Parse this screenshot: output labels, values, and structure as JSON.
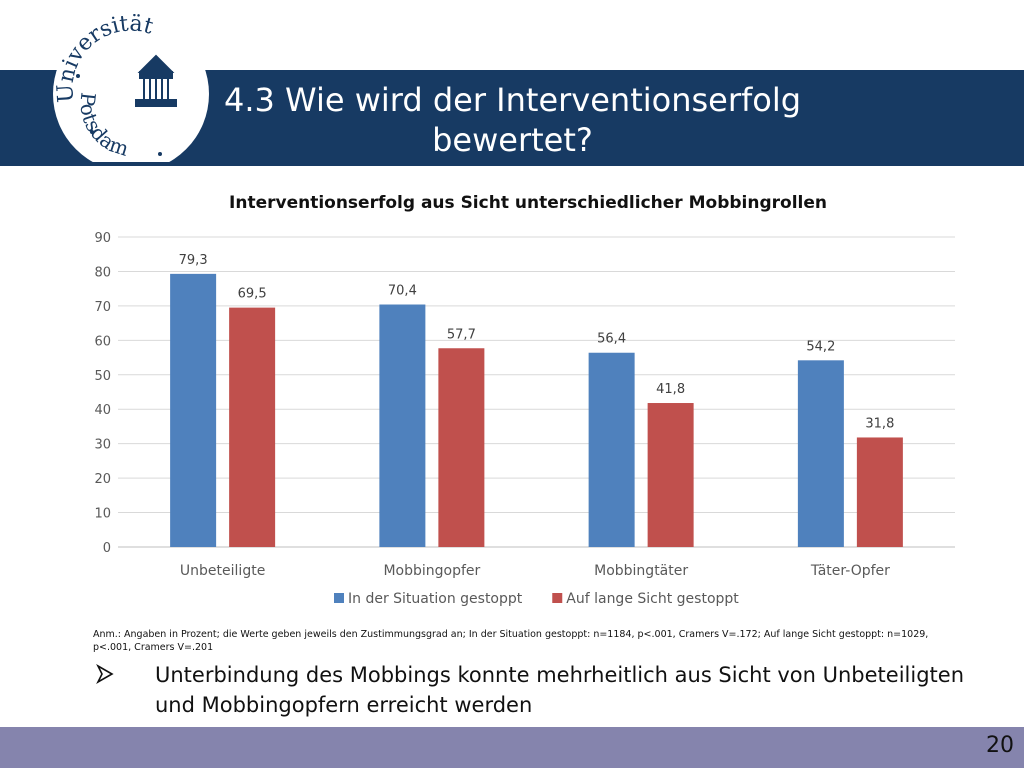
{
  "slide": {
    "title": "4.3 Wie wird der Interventionserfolg bewertet?",
    "logo": {
      "top_text": "Universität",
      "bottom_text": "Potsdam"
    },
    "note": "Anm.: Angaben in Prozent; die Werte geben jeweils den Zustimmungsgrad an; In der Situation gestoppt: n=1184, p<.001, Cramers V=.172; Auf lange Sicht gestoppt: n=1029, p<.001, Cramers V=.201",
    "bullet": "Unterbindung des Mobbings konnte mehrheitlich aus Sicht von Unbeteiligten und Mobbingopfern erreicht werden",
    "page_number": "20"
  },
  "colors": {
    "header": "#173a63",
    "footer": "#8584ad",
    "series1": "#4f81bd",
    "series2": "#c0504d",
    "grid": "#d9d9d9"
  },
  "chart_data": {
    "type": "bar",
    "title": "Interventionserfolg aus Sicht unterschiedlicher Mobbingrollen",
    "categories": [
      "Unbeteiligte",
      "Mobbingopfer",
      "Mobbingtäter",
      "Täter-Opfer"
    ],
    "series": [
      {
        "name": "In der Situation gestoppt",
        "values": [
          79.3,
          70.4,
          56.4,
          54.2
        ],
        "labels": [
          "79,3",
          "70,4",
          "56,4",
          "54,2"
        ],
        "color": "#4f81bd"
      },
      {
        "name": "Auf lange Sicht gestoppt",
        "values": [
          69.5,
          57.7,
          41.8,
          31.8
        ],
        "labels": [
          "69,5",
          "57,7",
          "41,8",
          "31,8"
        ],
        "color": "#c0504d"
      }
    ],
    "ylim": [
      0,
      90
    ],
    "yticks": [
      0,
      10,
      20,
      30,
      40,
      50,
      60,
      70,
      80,
      90
    ],
    "grid": true,
    "legend": "bottom"
  }
}
